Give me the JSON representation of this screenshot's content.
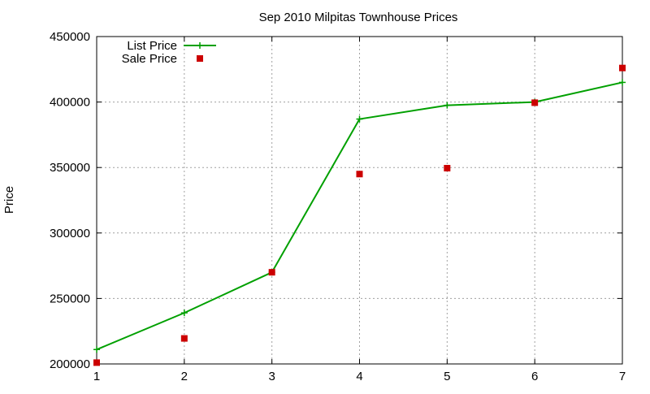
{
  "chart_data": {
    "type": "line",
    "title": "Sep 2010 Milpitas Townhouse Prices",
    "xlabel": "",
    "ylabel": "Price",
    "xlim": [
      1,
      7
    ],
    "ylim": [
      200000,
      450000
    ],
    "x_ticks": [
      1,
      2,
      3,
      4,
      5,
      6,
      7
    ],
    "y_ticks": [
      200000,
      250000,
      300000,
      350000,
      400000,
      450000
    ],
    "grid": true,
    "legend_position": "top-left",
    "series": [
      {
        "name": "List Price",
        "kind": "line",
        "marker": "plus",
        "color": "#00a000",
        "x": [
          1,
          2,
          3,
          4,
          5,
          6,
          7
        ],
        "values": [
          211000,
          239000,
          270000,
          387000,
          397500,
          400000,
          415000
        ]
      },
      {
        "name": "Sale Price",
        "kind": "scatter",
        "marker": "square",
        "color": "#cc0000",
        "x": [
          1,
          2,
          3,
          4,
          5,
          6,
          7
        ],
        "values": [
          201000,
          219500,
          270000,
          345000,
          349500,
          399500,
          426000
        ]
      }
    ]
  }
}
